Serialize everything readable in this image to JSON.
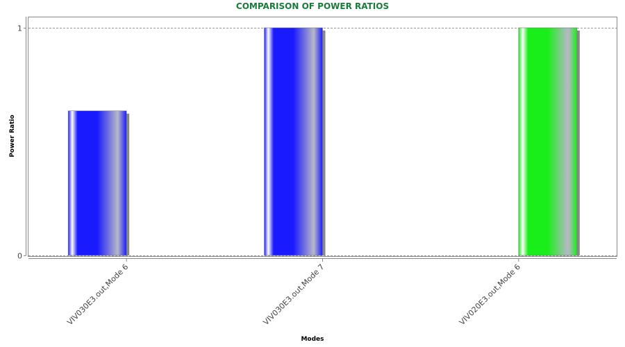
{
  "chart_data": {
    "type": "bar",
    "title": "COMPARISON OF POWER RATIOS",
    "xlabel": "Modes",
    "ylabel": "Power Ratio",
    "categories": [
      "VIV030E3.out,Mode 6",
      "VIV030E3.out,Mode 7",
      "VIV020E3.out,Mode 6"
    ],
    "series": [
      {
        "values": [
          0.635,
          1.0,
          null
        ],
        "color": "#1a1aff"
      },
      {
        "values": [
          null,
          null,
          1.0
        ],
        "color": "#1aee1a"
      }
    ],
    "ylim": [
      0,
      1
    ],
    "yticks": [
      0,
      1
    ],
    "grid": true,
    "title_color": "#1a7a3c"
  }
}
